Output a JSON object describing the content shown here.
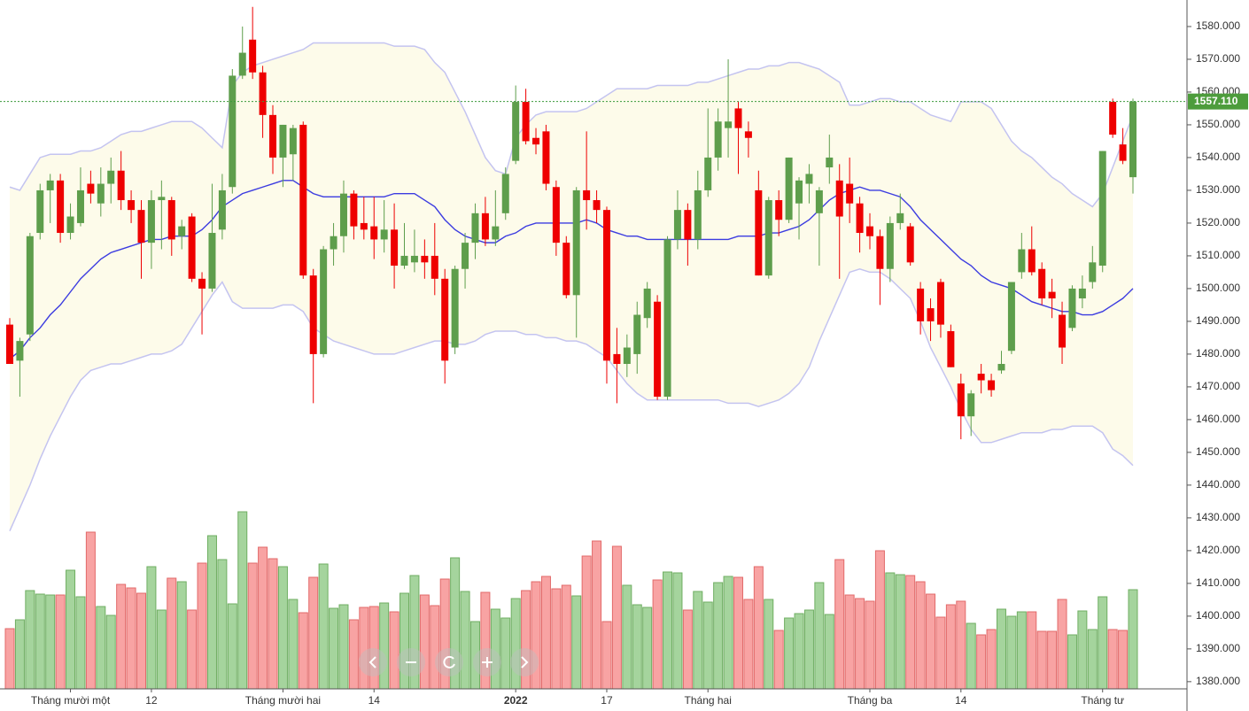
{
  "chart_data": {
    "type": "candlestick",
    "categories": [
      null,
      null,
      null,
      null,
      null,
      null,
      "Tháng mười một",
      null,
      null,
      null,
      null,
      null,
      null,
      null,
      "12",
      null,
      null,
      null,
      null,
      null,
      null,
      null,
      null,
      null,
      null,
      null,
      null,
      "Tháng mười hai",
      null,
      null,
      null,
      null,
      null,
      null,
      null,
      null,
      "14",
      null,
      null,
      null,
      null,
      null,
      null,
      null,
      null,
      null,
      null,
      null,
      null,
      null,
      "2022",
      null,
      null,
      null,
      null,
      null,
      null,
      null,
      null,
      "17",
      null,
      null,
      null,
      null,
      null,
      null,
      null,
      null,
      null,
      "Tháng hai",
      null,
      null,
      null,
      null,
      null,
      null,
      null,
      null,
      null,
      null,
      null,
      null,
      null,
      null,
      null,
      "Tháng ba",
      null,
      null,
      null,
      null,
      null,
      null,
      null,
      null,
      "14",
      null,
      null,
      null,
      null,
      null,
      null,
      null,
      null,
      null,
      null,
      null,
      null,
      null,
      "Tháng tư",
      null,
      null,
      null
    ],
    "open": [
      1489,
      1478,
      1486,
      1517,
      1530,
      1533,
      1517,
      1520,
      1532,
      1526,
      1532,
      1536,
      1527,
      1524,
      1514,
      1527,
      1527,
      1516,
      1522,
      1503,
      1500,
      1518,
      1531,
      1565,
      1576,
      1566,
      1553,
      1540,
      1541,
      1550,
      1504,
      1480,
      1512,
      1516,
      1529,
      1520,
      1519,
      1515,
      1518,
      1507,
      1508,
      1510,
      1510,
      1503,
      1482,
      1506,
      1514,
      1523,
      1515,
      1523,
      1539,
      1557,
      1546,
      1548,
      1531,
      1514,
      1498,
      1530,
      1527,
      1524,
      1480,
      1477,
      1480,
      1491,
      1496,
      1467,
      1515,
      1524,
      1515,
      1530,
      1540,
      1549,
      1555,
      1548,
      1530,
      1504,
      1527,
      1521,
      1526,
      1532,
      1523,
      1537,
      1533,
      1532,
      1526,
      1519,
      1516,
      1506,
      1520,
      1519,
      1500,
      1494,
      1502,
      1487,
      1471,
      1461,
      1474,
      1472,
      1475,
      1481,
      1505,
      1512,
      1506,
      1499,
      1492,
      1488,
      1497,
      1502,
      1507,
      1557,
      1544,
      1534
    ],
    "high": [
      1491,
      1485,
      1517,
      1532,
      1535,
      1535,
      1526,
      1537,
      1536,
      1537,
      1540,
      1542,
      1530,
      1527,
      1530,
      1533,
      1528,
      1521,
      1523,
      1505,
      1532,
      1535,
      1567,
      1580,
      1586,
      1568,
      1556,
      1550,
      1550,
      1551,
      1506,
      1513,
      1520,
      1533,
      1530,
      1528,
      1528,
      1527,
      1526,
      1520,
      1518,
      1515,
      1520,
      1506,
      1507,
      1517,
      1526,
      1528,
      1530,
      1537,
      1562,
      1561,
      1549,
      1550,
      1533,
      1516,
      1531,
      1548,
      1530,
      1525,
      1488,
      1486,
      1496,
      1502,
      1498,
      1516,
      1530,
      1526,
      1536,
      1555,
      1555,
      1570,
      1557,
      1551,
      1536,
      1528,
      1530,
      1540,
      1534,
      1538,
      1531,
      1547,
      1538,
      1540,
      1528,
      1523,
      1518,
      1522,
      1529,
      1520,
      1502,
      1497,
      1503,
      1489,
      1474,
      1469,
      1477,
      1474,
      1481,
      1502,
      1517,
      1519,
      1508,
      1503,
      1496,
      1501,
      1504,
      1513,
      1542,
      1558,
      1549,
      1558
    ],
    "low": [
      1477,
      1467,
      1484,
      1515,
      1520,
      1514,
      1515,
      1519,
      1526,
      1522,
      1526,
      1524,
      1520,
      1503,
      1506,
      1512,
      1510,
      1512,
      1502,
      1486,
      1499,
      1515,
      1529,
      1564,
      1564,
      1546,
      1535,
      1531,
      1533,
      1503,
      1465,
      1479,
      1507,
      1511,
      1515,
      1515,
      1509,
      1511,
      1500,
      1506,
      1505,
      1503,
      1498,
      1471,
      1480,
      1500,
      1509,
      1513,
      1513,
      1521,
      1538,
      1544,
      1541,
      1530,
      1510,
      1497,
      1485,
      1518,
      1520,
      1471,
      1465,
      1473,
      1474,
      1488,
      1466,
      1466,
      1512,
      1507,
      1512,
      1528,
      1536,
      1540,
      1535,
      1540,
      1504,
      1503,
      1516,
      1520,
      1515,
      1526,
      1507,
      1532,
      1503,
      1520,
      1511,
      1512,
      1495,
      1502,
      1518,
      1507,
      1486,
      1484,
      1485,
      1476,
      1454,
      1455,
      1468,
      1467,
      1474,
      1480,
      1503,
      1504,
      1495,
      1491,
      1477,
      1487,
      1494,
      1500,
      1505,
      1546,
      1538,
      1529
    ],
    "close": [
      1477,
      1484,
      1516,
      1530,
      1533,
      1517,
      1522,
      1530,
      1529,
      1532,
      1536,
      1527,
      1524,
      1514,
      1527,
      1528,
      1515,
      1519,
      1503,
      1500,
      1517,
      1530,
      1565,
      1572,
      1566,
      1553,
      1540,
      1550,
      1549,
      1504,
      1480,
      1512,
      1516,
      1529,
      1519,
      1518,
      1515,
      1518,
      1507,
      1510,
      1510,
      1508,
      1503,
      1478,
      1506,
      1514,
      1523,
      1515,
      1519,
      1535,
      1557,
      1545,
      1544,
      1532,
      1514,
      1498,
      1530,
      1527,
      1524,
      1478,
      1477,
      1482,
      1492,
      1500,
      1467,
      1515,
      1524,
      1515,
      1530,
      1540,
      1551,
      1551,
      1549,
      1546,
      1504,
      1527,
      1521,
      1540,
      1533,
      1535,
      1530,
      1540,
      1522,
      1526,
      1517,
      1516,
      1506,
      1520,
      1523,
      1508,
      1490,
      1490,
      1489,
      1476,
      1461,
      1468,
      1472,
      1469,
      1477,
      1502,
      1512,
      1505,
      1497,
      1497,
      1482,
      1500,
      1500,
      1508,
      1542,
      1547,
      1539,
      1557.11
    ],
    "volume": [
      68,
      78,
      111,
      107,
      106,
      106,
      134,
      104,
      177,
      93,
      83,
      118,
      114,
      108,
      138,
      89,
      125,
      121,
      89,
      142,
      173,
      146,
      96,
      200,
      142,
      160,
      147,
      138,
      101,
      86,
      126,
      141,
      91,
      95,
      78,
      92,
      93,
      97,
      87,
      108,
      128,
      106,
      94,
      124,
      148,
      110,
      76,
      109,
      90,
      80,
      102,
      111,
      121,
      127,
      113,
      117,
      105,
      150,
      167,
      76,
      161,
      117,
      95,
      92,
      123,
      132,
      131,
      89,
      110,
      98,
      120,
      127,
      126,
      101,
      138,
      101,
      66,
      80,
      85,
      89,
      120,
      84,
      146,
      106,
      102,
      99,
      156,
      131,
      129,
      128,
      121,
      107,
      81,
      95,
      99,
      74,
      61,
      67,
      90,
      82,
      87,
      87,
      65,
      65,
      101,
      61,
      88,
      67,
      104,
      67,
      66,
      112
    ],
    "ma": {
      "color": "#3c3ce0",
      "values": [
        1478.5,
        1481,
        1485,
        1488,
        1492,
        1495,
        1499,
        1503,
        1506,
        1509,
        1511,
        1512,
        1513,
        1514,
        1515,
        1515,
        1516,
        1516,
        1516,
        1518,
        1521,
        1525,
        1527,
        1529,
        1530,
        1531,
        1532,
        1533,
        1533,
        1531,
        1529,
        1528,
        1528,
        1528,
        1528,
        1528,
        1528,
        1528,
        1529,
        1529,
        1529,
        1527,
        1525,
        1521,
        1518,
        1516,
        1515,
        1514,
        1514,
        1516,
        1517,
        1519,
        1520,
        1520,
        1520,
        1520,
        1520,
        1521,
        1520,
        1518,
        1517,
        1516,
        1516,
        1515,
        1515,
        1515,
        1515,
        1515,
        1515,
        1515,
        1515,
        1515,
        1516,
        1516,
        1516,
        1517,
        1517,
        1518,
        1519,
        1521,
        1524,
        1527,
        1529,
        1530,
        1531,
        1530,
        1530,
        1529,
        1528,
        1525,
        1521,
        1518,
        1515,
        1512,
        1509,
        1507,
        1504,
        1502,
        1501,
        1500,
        1498,
        1496,
        1495,
        1494,
        1493,
        1493,
        1492,
        1492,
        1493,
        1495,
        1497,
        1500
      ]
    },
    "bb_upper": {
      "color": "#c4c4f0",
      "values": [
        1531,
        1530,
        1535,
        1540,
        1541,
        1541,
        1541,
        1542,
        1542,
        1543,
        1545,
        1547,
        1548,
        1548,
        1549,
        1550,
        1551,
        1551,
        1551,
        1549,
        1546,
        1543,
        1562,
        1566,
        1568,
        1569,
        1570,
        1571,
        1572,
        1573,
        1575,
        1575,
        1575,
        1575,
        1575,
        1575,
        1575,
        1575,
        1574,
        1574,
        1574,
        1573,
        1569,
        1566,
        1560,
        1554,
        1547,
        1540,
        1536,
        1535,
        1546,
        1550,
        1553,
        1554,
        1554,
        1554,
        1554,
        1555,
        1557,
        1559,
        1561,
        1561,
        1561,
        1561,
        1562,
        1562,
        1562,
        1562,
        1563,
        1563,
        1564,
        1565,
        1566,
        1567,
        1567,
        1568,
        1568,
        1569,
        1569,
        1568,
        1567,
        1565,
        1563,
        1556,
        1556,
        1557,
        1558,
        1558,
        1557,
        1557,
        1555,
        1553,
        1552,
        1551,
        1557,
        1557,
        1557,
        1555,
        1550,
        1545,
        1542,
        1540,
        1537,
        1534,
        1532,
        1529,
        1527,
        1525,
        1529,
        1537,
        1545,
        1553
      ]
    },
    "bb_lower": {
      "color": "#c4c4f0",
      "values": [
        1426,
        1433,
        1440,
        1448,
        1455,
        1461,
        1467,
        1472,
        1475,
        1476,
        1477,
        1477,
        1478,
        1479,
        1480,
        1480,
        1481,
        1483,
        1488,
        1493,
        1498,
        1502,
        1496,
        1494,
        1494,
        1494,
        1494,
        1495,
        1495,
        1493,
        1488,
        1486,
        1484,
        1483,
        1482,
        1481,
        1480,
        1480,
        1480,
        1481,
        1482,
        1483,
        1484,
        1484,
        1483,
        1483,
        1484,
        1486,
        1487,
        1487,
        1487,
        1486,
        1486,
        1485,
        1485,
        1484,
        1484,
        1483,
        1481,
        1479,
        1475,
        1471,
        1468,
        1466,
        1466,
        1466,
        1466,
        1466,
        1466,
        1466,
        1466,
        1465,
        1465,
        1465,
        1464,
        1465,
        1466,
        1468,
        1471,
        1476,
        1484,
        1491,
        1498,
        1505,
        1506,
        1505,
        1505,
        1503,
        1500,
        1497,
        1490,
        1482,
        1476,
        1470,
        1463,
        1457,
        1453,
        1453,
        1454,
        1455,
        1456,
        1456,
        1456,
        1457,
        1457,
        1458,
        1458,
        1458,
        1456,
        1451,
        1449,
        1446
      ]
    },
    "up_color": "#5e9e4c",
    "down_color": "#ee0000",
    "last_price": {
      "value": 1557.11,
      "label": "1557.110"
    },
    "ylim": [
      1377.8,
      1588.1
    ],
    "yticks": [
      {
        "value": 1380,
        "label": "1380.000"
      },
      {
        "value": 1390,
        "label": "1390.000"
      },
      {
        "value": 1400,
        "label": "1400.000"
      },
      {
        "value": 1410,
        "label": "1410.000"
      },
      {
        "value": 1420,
        "label": "1420.000"
      },
      {
        "value": 1430,
        "label": "1430.000"
      },
      {
        "value": 1440,
        "label": "1440.000"
      },
      {
        "value": 1450,
        "label": "1450.000"
      },
      {
        "value": 1460,
        "label": "1460.000"
      },
      {
        "value": 1470,
        "label": "1470.000"
      },
      {
        "value": 1480,
        "label": "1480.000"
      },
      {
        "value": 1490,
        "label": "1490.000"
      },
      {
        "value": 1500,
        "label": "1500.000"
      },
      {
        "value": 1510,
        "label": "1510.000"
      },
      {
        "value": 1520,
        "label": "1520.000"
      },
      {
        "value": 1530,
        "label": "1530.000"
      },
      {
        "value": 1540,
        "label": "1540.000"
      },
      {
        "value": 1550,
        "label": "1550.000"
      },
      {
        "value": 1560,
        "label": "1560.000"
      },
      {
        "value": 1570,
        "label": "1570.000"
      },
      {
        "value": 1580,
        "label": "1580.000"
      }
    ]
  }
}
